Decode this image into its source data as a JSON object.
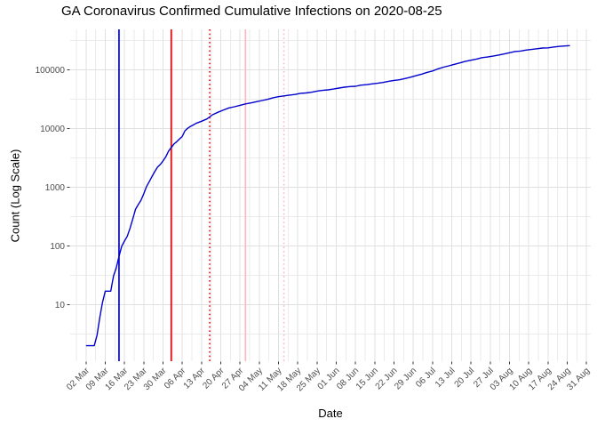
{
  "title": "GA Coronavirus Confirmed Cumulative Infections on 2020-08-25",
  "chart_data": {
    "type": "line",
    "title": "GA Coronavirus Confirmed Cumulative Infections on 2020-08-25",
    "xlabel": "Date",
    "ylabel": "Count (Log Scale)",
    "y_scale": "log10",
    "ylim": [
      1.1,
      530000
    ],
    "y_tick_values": [
      10,
      100,
      1000,
      10000,
      100000
    ],
    "y_tick_labels": [
      "10",
      "100",
      "1000",
      "10000",
      "100000"
    ],
    "x_start_date": "2020-03-02",
    "x_tick_interval_days": 7,
    "x_tick_labels": [
      "02 Mar",
      "09 Mar",
      "16 Mar",
      "23 Mar",
      "30 Mar",
      "06 Apr",
      "13 Apr",
      "20 Apr",
      "27 Apr",
      "04 May",
      "11 May",
      "18 May",
      "25 May",
      "01 Jun",
      "08 Jun",
      "15 Jun",
      "22 Jun",
      "29 Jun",
      "06 Jul",
      "13 Jul",
      "20 Jul",
      "27 Jul",
      "03 Aug",
      "10 Aug",
      "17 Aug",
      "24 Aug",
      "31 Aug"
    ],
    "grid": true,
    "legend": false,
    "line_color": "#0000CD",
    "vlines": [
      {
        "name": "blue-solid-vline",
        "date": "2020-03-14",
        "color": "#0000FF",
        "style": "solid"
      },
      {
        "name": "red-solid-vline",
        "date": "2020-04-02",
        "color": "#E00000",
        "style": "solid"
      },
      {
        "name": "red-dotted-vline",
        "date": "2020-04-16",
        "color": "#FF0000",
        "style": "dotted"
      },
      {
        "name": "pink-solid-vline",
        "date": "2020-04-29",
        "color": "#FFB6C1",
        "style": "solid"
      },
      {
        "name": "pink-dotted-vline",
        "date": "2020-05-13",
        "color": "#FFB6C1",
        "style": "dotted"
      }
    ],
    "series": [
      {
        "name": "cumulative-confirmed-infections",
        "points": [
          [
            "2020-03-02",
            2
          ],
          [
            "2020-03-04",
            2
          ],
          [
            "2020-03-05",
            2
          ],
          [
            "2020-03-06",
            3
          ],
          [
            "2020-03-07",
            6
          ],
          [
            "2020-03-08",
            11
          ],
          [
            "2020-03-09",
            17
          ],
          [
            "2020-03-11",
            17
          ],
          [
            "2020-03-12",
            31
          ],
          [
            "2020-03-13",
            42
          ],
          [
            "2020-03-14",
            66
          ],
          [
            "2020-03-15",
            99
          ],
          [
            "2020-03-16",
            121
          ],
          [
            "2020-03-17",
            146
          ],
          [
            "2020-03-18",
            199
          ],
          [
            "2020-03-19",
            287
          ],
          [
            "2020-03-20",
            420
          ],
          [
            "2020-03-21",
            507
          ],
          [
            "2020-03-22",
            600
          ],
          [
            "2020-03-23",
            772
          ],
          [
            "2020-03-24",
            1026
          ],
          [
            "2020-03-25",
            1247
          ],
          [
            "2020-03-26",
            1525
          ],
          [
            "2020-03-27",
            1849
          ],
          [
            "2020-03-28",
            2198
          ],
          [
            "2020-03-29",
            2446
          ],
          [
            "2020-03-30",
            2809
          ],
          [
            "2020-03-31",
            3300
          ],
          [
            "2020-04-01",
            4117
          ],
          [
            "2020-04-02",
            4748
          ],
          [
            "2020-04-03",
            5444
          ],
          [
            "2020-04-04",
            5967
          ],
          [
            "2020-04-05",
            6647
          ],
          [
            "2020-04-06",
            7314
          ],
          [
            "2020-04-07",
            9156
          ],
          [
            "2020-04-08",
            10096
          ],
          [
            "2020-04-09",
            10885
          ],
          [
            "2020-04-10",
            11485
          ],
          [
            "2020-04-11",
            12261
          ],
          [
            "2020-04-13",
            13315
          ],
          [
            "2020-04-15",
            14578
          ],
          [
            "2020-04-17",
            17194
          ],
          [
            "2020-04-19",
            18947
          ],
          [
            "2020-04-21",
            20740
          ],
          [
            "2020-04-23",
            22491
          ],
          [
            "2020-04-25",
            23481
          ],
          [
            "2020-04-27",
            24854
          ],
          [
            "2020-04-29",
            26264
          ],
          [
            "2020-05-01",
            27270
          ],
          [
            "2020-05-03",
            28671
          ],
          [
            "2020-05-05",
            29998
          ],
          [
            "2020-05-07",
            31439
          ],
          [
            "2020-05-09",
            33441
          ],
          [
            "2020-05-11",
            34848
          ],
          [
            "2020-05-13",
            35977
          ],
          [
            "2020-05-15",
            37147
          ],
          [
            "2020-05-17",
            38081
          ],
          [
            "2020-05-19",
            39801
          ],
          [
            "2020-05-21",
            40405
          ],
          [
            "2020-05-23",
            41482
          ],
          [
            "2020-05-25",
            43400
          ],
          [
            "2020-05-27",
            44638
          ],
          [
            "2020-05-29",
            45670
          ],
          [
            "2020-05-31",
            46998
          ],
          [
            "2020-06-02",
            48894
          ],
          [
            "2020-06-04",
            50621
          ],
          [
            "2020-06-06",
            51898
          ],
          [
            "2020-06-08",
            52497
          ],
          [
            "2020-06-10",
            54973
          ],
          [
            "2020-06-12",
            55783
          ],
          [
            "2020-06-14",
            57681
          ],
          [
            "2020-06-16",
            59078
          ],
          [
            "2020-06-18",
            60912
          ],
          [
            "2020-06-20",
            63809
          ],
          [
            "2020-06-22",
            65928
          ],
          [
            "2020-06-24",
            67678
          ],
          [
            "2020-06-26",
            71095
          ],
          [
            "2020-06-28",
            74985
          ],
          [
            "2020-06-30",
            79417
          ],
          [
            "2020-07-02",
            84237
          ],
          [
            "2020-07-04",
            90493
          ],
          [
            "2020-07-06",
            95516
          ],
          [
            "2020-07-08",
            103890
          ],
          [
            "2020-07-10",
            111211
          ],
          [
            "2020-07-12",
            116926
          ],
          [
            "2020-07-14",
            123963
          ],
          [
            "2020-07-16",
            131275
          ],
          [
            "2020-07-18",
            139872
          ],
          [
            "2020-07-20",
            145575
          ],
          [
            "2020-07-22",
            152302
          ],
          [
            "2020-07-24",
            161420
          ],
          [
            "2020-07-26",
            165188
          ],
          [
            "2020-07-28",
            170843
          ],
          [
            "2020-07-30",
            178323
          ],
          [
            "2020-08-01",
            186352
          ],
          [
            "2020-08-03",
            195435
          ],
          [
            "2020-08-05",
            204895
          ],
          [
            "2020-08-07",
            209004
          ],
          [
            "2020-08-09",
            216596
          ],
          [
            "2020-08-11",
            222588
          ],
          [
            "2020-08-13",
            228668
          ],
          [
            "2020-08-15",
            235168
          ],
          [
            "2020-08-17",
            237030
          ],
          [
            "2020-08-19",
            244661
          ],
          [
            "2020-08-21",
            250222
          ],
          [
            "2020-08-23",
            254976
          ],
          [
            "2020-08-25",
            258354
          ]
        ]
      }
    ]
  }
}
